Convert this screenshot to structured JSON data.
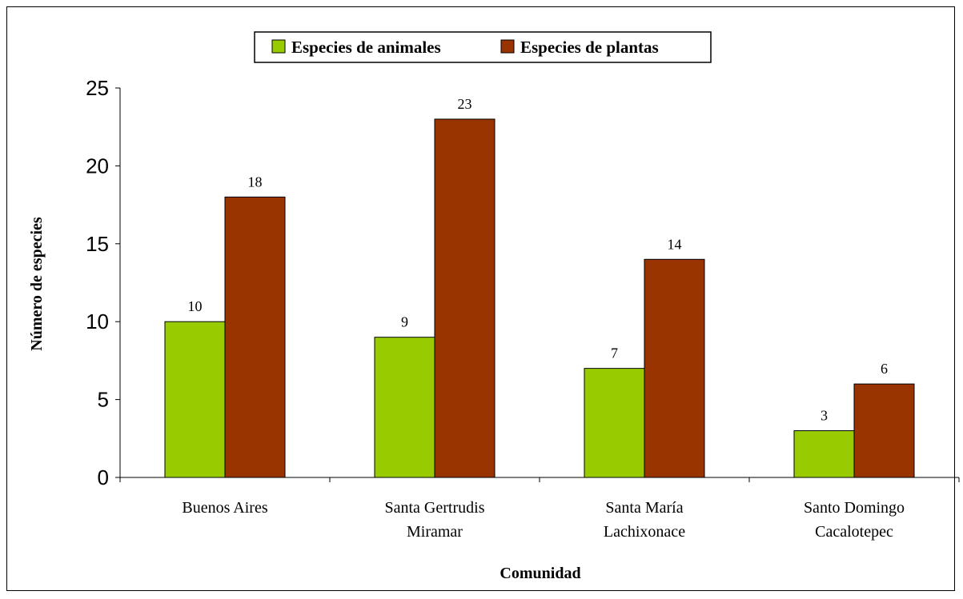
{
  "chart_data": {
    "type": "bar",
    "categories": [
      [
        "Buenos Aires"
      ],
      [
        "Santa Gertrudis",
        "Miramar"
      ],
      [
        "Santa María",
        "Lachixonace"
      ],
      [
        "Santo Domingo",
        "Cacalotepec"
      ]
    ],
    "series": [
      {
        "name": "Especies de animales",
        "color": "#99CC00",
        "values": [
          10,
          9,
          7,
          3
        ]
      },
      {
        "name": "Especies de plantas",
        "color": "#993300",
        "values": [
          18,
          23,
          14,
          6
        ]
      }
    ],
    "xlabel": "Comunidad",
    "ylabel": "Número de especies",
    "ylim": [
      0,
      25
    ],
    "yticks": [
      0,
      5,
      10,
      15,
      20,
      25
    ],
    "grid": false,
    "legend_position": "top-center",
    "data_labels": true
  }
}
